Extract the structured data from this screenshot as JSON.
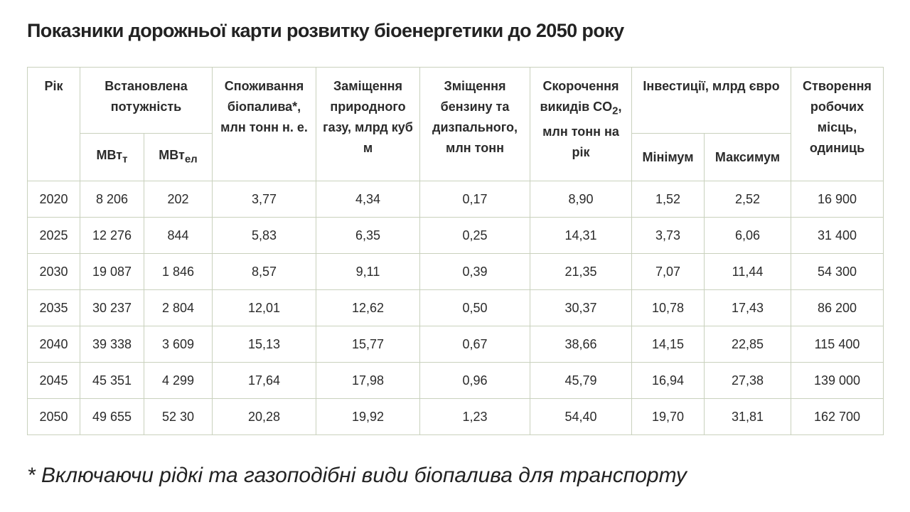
{
  "title": "Показники дорожньої карти розвитку біоенергетики до 2050 року",
  "table": {
    "header": {
      "year": "Рік",
      "capacity": "Встановлена потужність",
      "capacity_thermal": {
        "unit": "МВт",
        "sub": "т"
      },
      "capacity_electric": {
        "unit": "МВт",
        "sub": "ел"
      },
      "biofuel": "Споживання біопалива*, млн тонн н. е.",
      "gas": "Заміщення природного газу, млрд куб м",
      "petrol": "Зміщення бензину та дизпального, млн тонн",
      "co2": {
        "before": "Скорочення викидів CO",
        "sub": "2",
        "after": ", млн тонн на рік"
      },
      "investment": "Інвестиції, млрд євро",
      "investment_min": "Мінімум",
      "investment_max": "Максимум",
      "jobs": "Створення робочих місць, одиниць"
    },
    "rows": [
      [
        "2020",
        "8 206",
        "202",
        "3,77",
        "4,34",
        "0,17",
        "8,90",
        "1,52",
        "2,52",
        "16 900"
      ],
      [
        "2025",
        "12 276",
        "844",
        "5,83",
        "6,35",
        "0,25",
        "14,31",
        "3,73",
        "6,06",
        "31 400"
      ],
      [
        "2030",
        "19 087",
        "1 846",
        "8,57",
        "9,11",
        "0,39",
        "21,35",
        "7,07",
        "11,44",
        "54 300"
      ],
      [
        "2035",
        "30 237",
        "2 804",
        "12,01",
        "12,62",
        "0,50",
        "30,37",
        "10,78",
        "17,43",
        "86 200"
      ],
      [
        "2040",
        "39 338",
        "3 609",
        "15,13",
        "15,77",
        "0,67",
        "38,66",
        "14,15",
        "22,85",
        "115 400"
      ],
      [
        "2045",
        "45 351",
        "4 299",
        "17,64",
        "17,98",
        "0,96",
        "45,79",
        "16,94",
        "27,38",
        "139 000"
      ],
      [
        "2050",
        "49 655",
        "52 30",
        "20,28",
        "19,92",
        "1,23",
        "54,40",
        "19,70",
        "31,81",
        "162 700"
      ]
    ]
  },
  "footnote": "* Включаючи рідкі та газоподібні види біопалива для транспорту"
}
